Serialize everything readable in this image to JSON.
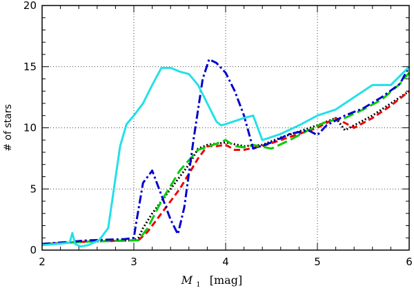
{
  "chart_data": {
    "type": "line",
    "title": "",
    "xlabel": {
      "symbol": "M",
      "subscript": "1",
      "unit": "[mag]"
    },
    "ylabel": "# of stars",
    "xlim": [
      2,
      6
    ],
    "ylim": [
      0,
      20
    ],
    "xticks": [
      2,
      3,
      4,
      5,
      6
    ],
    "yticks": [
      0,
      5,
      10,
      15,
      20
    ],
    "xtick_labels": [
      "2",
      "3",
      "4",
      "5",
      "6"
    ],
    "ytick_labels": [
      "0",
      "5",
      "10",
      "15",
      "20"
    ],
    "grid": true,
    "series": [
      {
        "name": "black-dotted",
        "color": "#000000",
        "dash": "2,3",
        "x": [
          2.0,
          2.5,
          3.0,
          3.05,
          3.1,
          3.2,
          3.4,
          3.6,
          3.7,
          3.8,
          4.0,
          4.2,
          4.4,
          4.6,
          4.8,
          5.0,
          5.2,
          5.3,
          5.4,
          5.6,
          5.8,
          6.0
        ],
        "y": [
          0.5,
          0.7,
          0.8,
          1.0,
          1.8,
          3.0,
          5.0,
          7.0,
          8.3,
          8.6,
          8.8,
          8.5,
          8.6,
          9.2,
          9.7,
          10.2,
          10.8,
          9.8,
          10.2,
          11.0,
          12.0,
          13.0
        ]
      },
      {
        "name": "red-dashed",
        "color": "#ee0000",
        "dash": "9,5",
        "x": [
          2.0,
          2.5,
          3.0,
          3.05,
          3.15,
          3.3,
          3.5,
          3.7,
          3.8,
          3.9,
          4.0,
          4.1,
          4.2,
          4.4,
          4.6,
          4.8,
          5.0,
          5.2,
          5.4,
          5.6,
          5.8,
          6.0
        ],
        "y": [
          0.5,
          0.7,
          0.8,
          0.8,
          1.5,
          3.0,
          5.0,
          7.5,
          8.5,
          8.5,
          8.6,
          8.2,
          8.2,
          8.5,
          9.0,
          9.5,
          10.0,
          10.8,
          10.0,
          10.8,
          11.8,
          13.0
        ]
      },
      {
        "name": "green-longdashed",
        "color": "#00cc00",
        "dash": "15,6",
        "x": [
          2.0,
          2.5,
          3.0,
          3.05,
          3.15,
          3.3,
          3.5,
          3.7,
          3.9,
          4.0,
          4.1,
          4.2,
          4.3,
          4.5,
          4.7,
          4.9,
          5.1,
          5.3,
          5.5,
          5.7,
          5.9,
          6.0
        ],
        "y": [
          0.5,
          0.7,
          0.8,
          0.8,
          1.8,
          4.0,
          6.5,
          8.2,
          8.7,
          9.0,
          8.5,
          8.4,
          8.6,
          8.3,
          9.0,
          9.8,
          10.5,
          10.8,
          11.5,
          12.3,
          13.6,
          14.5
        ]
      },
      {
        "name": "blue-dashdot",
        "color": "#0000cc",
        "dash": "12,4,3,4",
        "x": [
          2.0,
          2.5,
          2.9,
          3.0,
          3.02,
          3.1,
          3.2,
          3.3,
          3.4,
          3.48,
          3.55,
          3.65,
          3.75,
          3.82,
          3.9,
          4.0,
          4.1,
          4.2,
          4.3,
          4.5,
          4.7,
          4.9,
          5.0,
          5.1,
          5.3,
          5.5,
          5.7,
          5.9,
          6.0
        ],
        "y": [
          0.5,
          0.8,
          0.9,
          1.0,
          2.0,
          5.5,
          6.5,
          4.5,
          2.5,
          1.3,
          3.5,
          9.0,
          14.0,
          15.6,
          15.3,
          14.5,
          13.0,
          11.0,
          8.3,
          8.8,
          9.5,
          9.8,
          9.4,
          10.2,
          11.0,
          11.6,
          12.5,
          13.6,
          15.0
        ]
      },
      {
        "name": "cyan-solid",
        "color": "#22e0e8",
        "dash": "",
        "x": [
          2.0,
          2.3,
          2.33,
          2.36,
          2.42,
          2.5,
          2.62,
          2.72,
          2.85,
          2.92,
          3.0,
          3.1,
          3.2,
          3.3,
          3.4,
          3.5,
          3.6,
          3.7,
          3.8,
          3.9,
          3.95,
          4.0,
          4.2,
          4.3,
          4.4,
          4.6,
          4.8,
          5.0,
          5.2,
          5.4,
          5.6,
          5.8,
          6.0
        ],
        "y": [
          0.4,
          0.6,
          1.4,
          0.5,
          0.3,
          0.4,
          0.8,
          1.8,
          8.5,
          10.3,
          11.0,
          12.0,
          13.5,
          14.9,
          14.9,
          14.6,
          14.4,
          13.5,
          12.0,
          10.5,
          10.2,
          10.3,
          10.8,
          11.0,
          9.0,
          9.5,
          10.2,
          11.0,
          11.5,
          12.5,
          13.5,
          13.5,
          15.0
        ]
      }
    ]
  }
}
